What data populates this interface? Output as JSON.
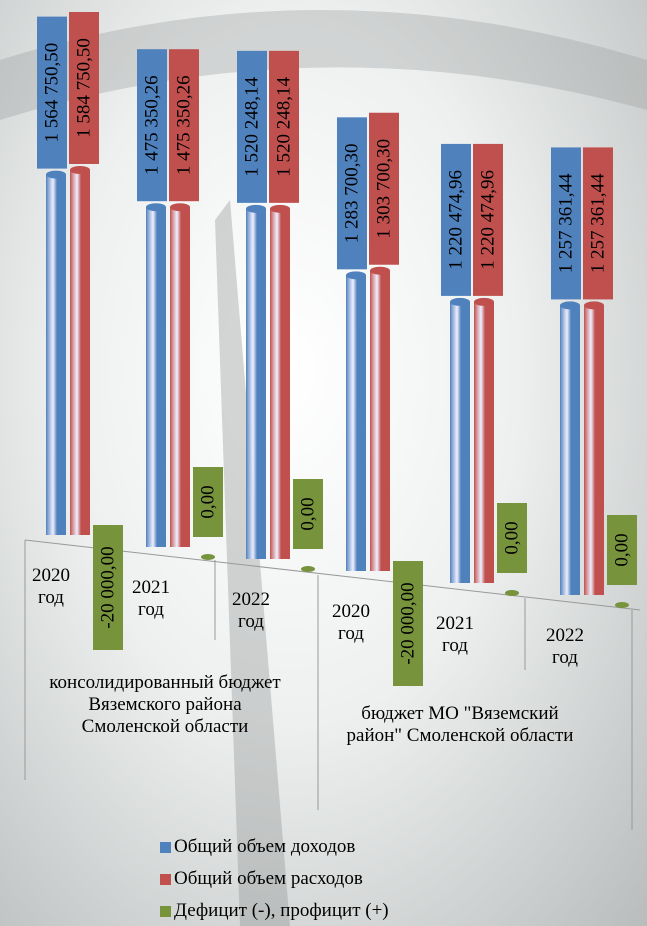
{
  "chart_data": {
    "type": "bar3d",
    "categories": [
      "2020 год",
      "2021 год",
      "2022 год",
      "2020 год",
      "2021 год",
      "2022 год"
    ],
    "groups": [
      {
        "label": "консолидированный бюджет Вяземского района Смоленской области",
        "size": 3
      },
      {
        "label": "бюджет МО \"Вяземский район\" Смоленской области",
        "size": 3
      }
    ],
    "series": [
      {
        "name": "Общий объем доходов",
        "color": "#4f81bd",
        "values": [
          1564750.5,
          1475350.26,
          1520248.14,
          1283700.3,
          1220474.96,
          1257361.44
        ],
        "value_labels": [
          "1 564 750,50",
          "1 475 350,26",
          "1 520 248,14",
          "1 283 700,30",
          "1 220 474,96",
          "1 257 361,44"
        ]
      },
      {
        "name": "Общий объем расходов",
        "color": "#c0504d",
        "values": [
          1584750.5,
          1475350.26,
          1520248.14,
          1303700.3,
          1220474.96,
          1257361.44
        ],
        "value_labels": [
          "1 584 750,50",
          "1 475 350,26",
          "1 520 248,14",
          "1 303 700,30",
          "1 220 474,96",
          "1 257 361,44"
        ]
      },
      {
        "name": "Дефицит (-), профицит (+)",
        "color": "#77933c",
        "values": [
          -20000,
          0,
          0,
          -20000,
          0,
          0
        ],
        "value_labels": [
          "-20 000,00",
          "0,00",
          "0,00",
          "-20 000,00",
          "0,00",
          "0,00"
        ]
      }
    ]
  }
}
